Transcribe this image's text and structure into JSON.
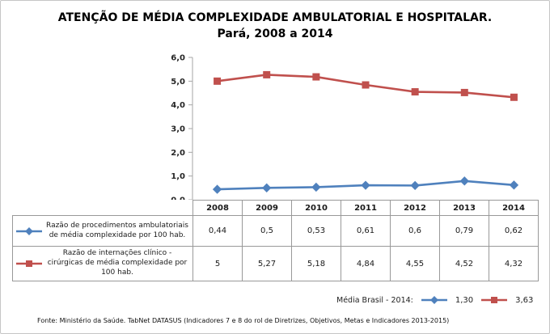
{
  "title": {
    "line1": "ATENÇÃO DE MÉDIA COMPLEXIDADE AMBULATORIAL E HOSPITALAR.",
    "line2": "Pará, 2008 a 2014"
  },
  "chart_data": {
    "type": "line",
    "categories": [
      "2008",
      "2009",
      "2010",
      "2011",
      "2012",
      "2013",
      "2014"
    ],
    "series": [
      {
        "name": "Razão de procedimentos ambulatoriais de média complexidade por 100 hab.",
        "values": [
          0.44,
          0.5,
          0.53,
          0.61,
          0.6,
          0.79,
          0.62
        ],
        "display_values": [
          "0,44",
          "0,5",
          "0,53",
          "0,61",
          "0,6",
          "0,79",
          "0,62"
        ],
        "color": "#4F81BD",
        "marker": "diamond"
      },
      {
        "name": "Razão de internações clínico - cirúrgicas de média complexidade por 100 hab.",
        "values": [
          5,
          5.27,
          5.18,
          4.84,
          4.55,
          4.52,
          4.32
        ],
        "display_values": [
          "5",
          "5,27",
          "5,18",
          "4,84",
          "4,55",
          "4,52",
          "4,32"
        ],
        "color": "#C0504D",
        "marker": "square"
      }
    ],
    "ylim": [
      0,
      6
    ],
    "ytick_step": 1,
    "ytick_labels": [
      "0,0",
      "1,0",
      "2,0",
      "3,0",
      "4,0",
      "5,0",
      "6,0"
    ],
    "grid": false,
    "legend_position": "data-table-left",
    "axis_color": "#a6a6a6"
  },
  "media_brasil": {
    "label": "Média Brasil - 2014:",
    "series": [
      {
        "value": "1,30",
        "color": "#4F81BD",
        "marker": "diamond"
      },
      {
        "value": "3,63",
        "color": "#C0504D",
        "marker": "square"
      }
    ]
  },
  "footer": {
    "source": "Fonte: Ministério da Saúde. TabNet DATASUS (Indicadores 7 e 8 do rol de Diretrizes, Objetivos, Metas e Indicadores 2013-2015)"
  }
}
